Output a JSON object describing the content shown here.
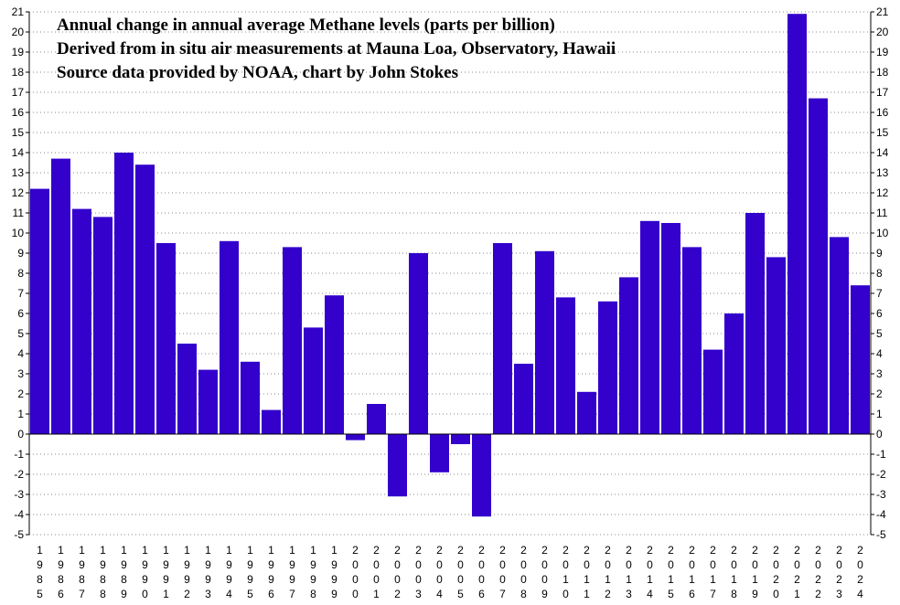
{
  "chart_data": {
    "type": "bar",
    "title_lines": [
      "Annual change in annual average Methane levels (parts per billion)",
      "Derived from in situ air measurements at Mauna Loa, Observatory, Hawaii",
      "Source data provided by NOAA, chart by John Stokes"
    ],
    "xlabel": "",
    "ylabel": "",
    "ylim": [
      -5,
      21
    ],
    "yticks": [
      -5,
      -4,
      -3,
      -2,
      -1,
      0,
      1,
      2,
      3,
      4,
      5,
      6,
      7,
      8,
      9,
      10,
      11,
      12,
      13,
      14,
      15,
      16,
      17,
      18,
      19,
      20,
      21
    ],
    "grid": "horizontal dotted",
    "bar_color": "#3300cc",
    "categories": [
      "1985",
      "1986",
      "1987",
      "1988",
      "1989",
      "1990",
      "1991",
      "1992",
      "1993",
      "1994",
      "1995",
      "1996",
      "1997",
      "1998",
      "1999",
      "2000",
      "2001",
      "2002",
      "2003",
      "2004",
      "2005",
      "2006",
      "2007",
      "2008",
      "2009",
      "2010",
      "2011",
      "2012",
      "2013",
      "2014",
      "2015",
      "2016",
      "2017",
      "2018",
      "2019",
      "2020",
      "2021",
      "2022",
      "2023",
      "2024"
    ],
    "values": [
      12.2,
      13.7,
      11.2,
      10.8,
      14.0,
      13.4,
      9.5,
      4.5,
      3.2,
      9.6,
      3.6,
      1.2,
      9.3,
      5.3,
      6.9,
      -0.3,
      1.5,
      -3.1,
      9.0,
      -1.9,
      -0.5,
      -4.1,
      9.5,
      3.5,
      9.1,
      6.8,
      2.1,
      6.6,
      7.8,
      10.6,
      10.5,
      9.3,
      4.2,
      6.0,
      11.0,
      8.8,
      20.9,
      16.7,
      9.8,
      7.4
    ]
  }
}
